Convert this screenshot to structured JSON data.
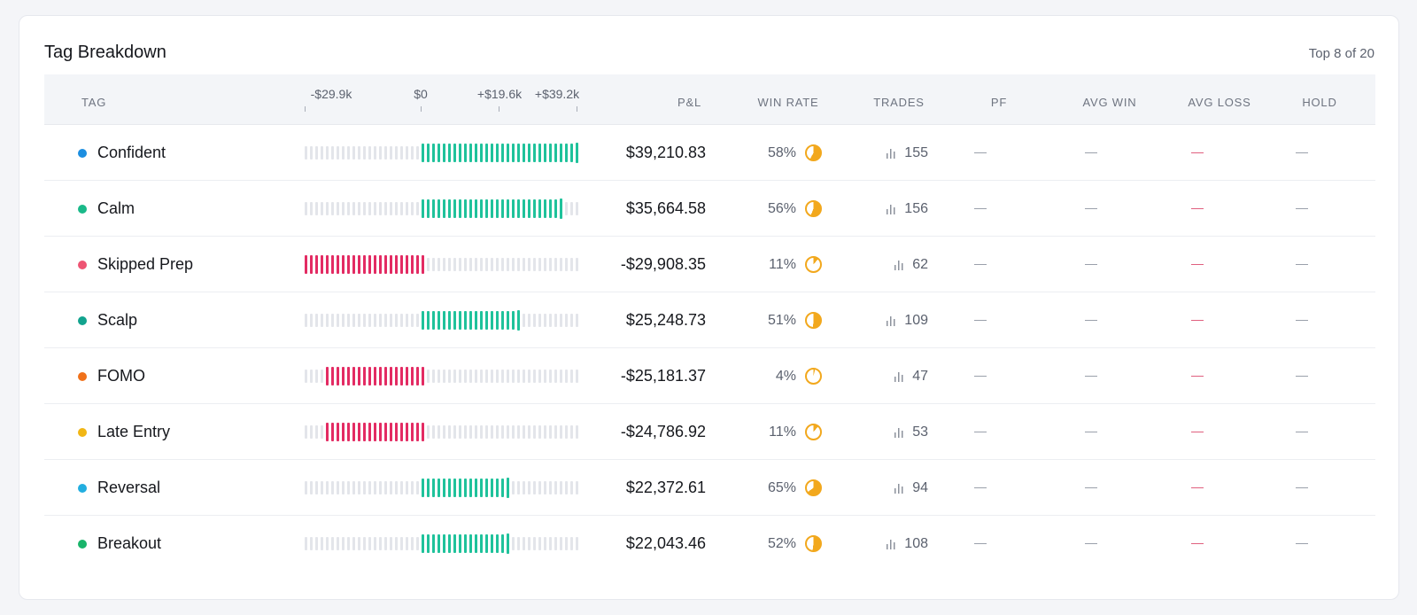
{
  "card": {
    "title": "Tag Breakdown",
    "meta": "Top 8 of 20"
  },
  "columns": {
    "tag": "TAG",
    "pnl": "P&L",
    "win_rate": "WIN RATE",
    "trades": "TRADES",
    "pf": "PF",
    "avg_win": "AVG WIN",
    "avg_loss": "AVG LOSS",
    "hold": "HOLD"
  },
  "scale": {
    "min_label": "-$29.9k",
    "zero_label": "$0",
    "mid_label": "+$19.6k",
    "max_label": "+$39.2k",
    "min": -29908.35,
    "max": 39210.83
  },
  "colors": {
    "positive": "#1fc29b",
    "negative": "#e32b63",
    "win_icon": "#f2a81d",
    "avg_loss_dash": "#e0607f"
  },
  "rows": [
    {
      "tag": "Confident",
      "color": "#1c8ee0",
      "pnl_value": 39210.83,
      "pnl": "$39,210.83",
      "win_pct": 58,
      "win": "58%",
      "trades": "155",
      "pf": "—",
      "avg_win": "—",
      "avg_loss": "—",
      "hold": "—"
    },
    {
      "tag": "Calm",
      "color": "#1ab989",
      "pnl_value": 35664.58,
      "pnl": "$35,664.58",
      "win_pct": 56,
      "win": "56%",
      "trades": "156",
      "pf": "—",
      "avg_win": "—",
      "avg_loss": "—",
      "hold": "—"
    },
    {
      "tag": "Skipped Prep",
      "color": "#ee5473",
      "pnl_value": -29908.35,
      "pnl": "-$29,908.35",
      "win_pct": 11,
      "win": "11%",
      "trades": "62",
      "pf": "—",
      "avg_win": "—",
      "avg_loss": "—",
      "hold": "—"
    },
    {
      "tag": "Scalp",
      "color": "#12a38e",
      "pnl_value": 25248.73,
      "pnl": "$25,248.73",
      "win_pct": 51,
      "win": "51%",
      "trades": "109",
      "pf": "—",
      "avg_win": "—",
      "avg_loss": "—",
      "hold": "—"
    },
    {
      "tag": "FOMO",
      "color": "#f0711a",
      "pnl_value": -25181.37,
      "pnl": "-$25,181.37",
      "win_pct": 4,
      "win": "4%",
      "trades": "47",
      "pf": "—",
      "avg_win": "—",
      "avg_loss": "—",
      "hold": "—"
    },
    {
      "tag": "Late Entry",
      "color": "#f1b614",
      "pnl_value": -24786.92,
      "pnl": "-$24,786.92",
      "win_pct": 11,
      "win": "11%",
      "trades": "53",
      "pf": "—",
      "avg_win": "—",
      "avg_loss": "—",
      "hold": "—"
    },
    {
      "tag": "Reversal",
      "color": "#22aee0",
      "pnl_value": 22372.61,
      "pnl": "$22,372.61",
      "win_pct": 65,
      "win": "65%",
      "trades": "94",
      "pf": "—",
      "avg_win": "—",
      "avg_loss": "—",
      "hold": "—"
    },
    {
      "tag": "Breakout",
      "color": "#19b46a",
      "pnl_value": 22043.46,
      "pnl": "$22,043.46",
      "win_pct": 52,
      "win": "52%",
      "trades": "108",
      "pf": "—",
      "avg_win": "—",
      "avg_loss": "—",
      "hold": "—"
    }
  ]
}
